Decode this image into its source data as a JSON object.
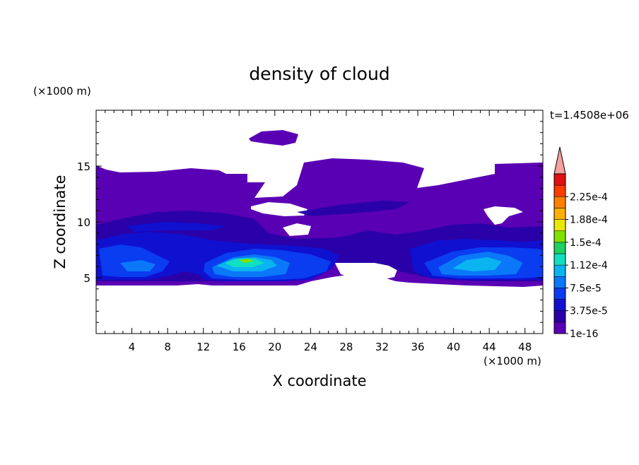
{
  "chart_data": {
    "type": "heatmap",
    "title": "density of cloud",
    "xlabel": "X coordinate",
    "ylabel": "Z coordinate",
    "x_unit": "(×1000 m)",
    "y_unit": "(×1000 m)",
    "time_label": "t=1.4508e+06",
    "xlim": [
      0,
      50
    ],
    "ylim": [
      0,
      20
    ],
    "x_ticks": [
      4,
      8,
      12,
      16,
      20,
      24,
      28,
      32,
      36,
      40,
      44,
      48
    ],
    "y_ticks": [
      5,
      10,
      15
    ],
    "colorbar": {
      "levels": [
        1e-16,
        1.875e-05,
        3.75e-05,
        5.625e-05,
        7.5e-05,
        9.375e-05,
        0.0001125,
        0.00013125,
        0.00015,
        0.00016875,
        0.0001875,
        0.00020625,
        0.000225,
        0.00024375
      ],
      "tick_labels": [
        "1e-16",
        "3.75e-5",
        "7.5e-5",
        "1.12e-4",
        "1.5e-4",
        "1.88e-4",
        "2.25e-4"
      ],
      "colors": [
        "#5a00b4",
        "#2a00a8",
        "#1010d0",
        "#0a3cf0",
        "#0a78f8",
        "#0ab4f0",
        "#10e0c0",
        "#20d060",
        "#80e000",
        "#e8e800",
        "#ffb000",
        "#ff8000",
        "#ff3c00",
        "#e01010"
      ],
      "overflow_color": "#f4a0a0"
    },
    "regions": [
      {
        "level": 0,
        "x": [
          0,
          50
        ],
        "z": [
          4.6,
          15
        ]
      },
      {
        "level": 1,
        "x": [
          0,
          50
        ],
        "z": [
          6.5,
          10
        ]
      },
      {
        "level": 2,
        "x": [
          10,
          27
        ],
        "z": [
          5.2,
          8
        ]
      },
      {
        "level": 2,
        "x": [
          36,
          50
        ],
        "z": [
          5.2,
          7.8
        ]
      },
      {
        "level": 3,
        "x": [
          13,
          24
        ],
        "z": [
          5.5,
          7.5
        ]
      },
      {
        "level": 4,
        "x": [
          14,
          20
        ],
        "z": [
          6,
          7
        ]
      },
      {
        "level": 5,
        "x": [
          15,
          19
        ],
        "z": [
          6.3,
          6.9
        ]
      },
      {
        "level": 6,
        "x": [
          16,
          18
        ],
        "z": [
          6.5,
          6.8
        ]
      },
      {
        "level": 8,
        "x": [
          16.8,
          17.6
        ],
        "z": [
          6.6,
          6.8
        ]
      }
    ]
  }
}
